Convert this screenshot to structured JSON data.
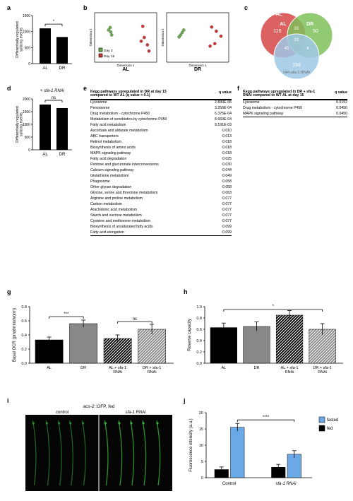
{
  "panel_a": {
    "label": "a",
    "type": "bar",
    "categories": [
      "AL",
      "DR"
    ],
    "values": [
      1100,
      830
    ],
    "errors": [
      0,
      0
    ],
    "ylim": [
      0,
      1500
    ],
    "ytick_step": 500,
    "ylabel": "Differentially regulated\nsplicing events",
    "bar_colors": [
      "#000000",
      "#000000"
    ],
    "sig_label": "*",
    "title_fontsize": 7,
    "axis_fontsize": 6
  },
  "panel_b": {
    "label": "b",
    "type": "scatter_pair",
    "left_label": "AL",
    "right_label": "DR",
    "legend": [
      {
        "label": "Day 3",
        "color": "#6aa84f"
      },
      {
        "label": "Day 15",
        "color": "#cc3333"
      }
    ],
    "left": {
      "day3": [
        [
          -0.5,
          0.4
        ],
        [
          -0.55,
          0.3
        ],
        [
          -0.48,
          0.22
        ],
        [
          -0.45,
          0.1
        ]
      ],
      "day15": [
        [
          0.55,
          0.45
        ],
        [
          0.6,
          0.0
        ],
        [
          0.7,
          -0.3
        ],
        [
          0.75,
          -0.55
        ],
        [
          0.5,
          -0.15
        ]
      ]
    },
    "right": {
      "day3": [
        [
          -0.45,
          0.3
        ],
        [
          -0.5,
          0.2
        ],
        [
          -0.55,
          0.1
        ],
        [
          -0.6,
          0.02
        ]
      ],
      "day15": [
        [
          0.45,
          0.42
        ],
        [
          0.6,
          0.25
        ],
        [
          0.75,
          0.05
        ],
        [
          0.55,
          -0.25
        ],
        [
          0.4,
          -0.35
        ]
      ]
    },
    "xlabel": "Dimension 1",
    "ylabel": "Dimension 2",
    "xlim": [
      -1,
      1
    ],
    "ylim": [
      -1,
      1
    ],
    "point_r": 2.2
  },
  "panel_c": {
    "label": "c",
    "type": "venn3",
    "circle_fill": {
      "AL": "#d64545",
      "DR": "#7fbf5a",
      "DRsfa": "#9fc8e6"
    },
    "labels": {
      "AL": "AL",
      "DR": "DR",
      "DRsfa": "DR+sfa-1 RNAi"
    },
    "counts": {
      "AL_only": 116,
      "DR_only": 50,
      "DRsfa_only": 158,
      "AL_DR": 33,
      "AL_DRsfa": 45,
      "DR_DRsfa": 4,
      "ALL": 33
    }
  },
  "panel_d": {
    "label": "d",
    "type": "bar",
    "title": "+ sfa-1 RNAi",
    "categories": [
      "AL",
      "DR"
    ],
    "values": [
      1780,
      1640
    ],
    "ylim": [
      0,
      2000
    ],
    "ytick_step": 500,
    "ylabel": "Differentially regulated\nsplicing events",
    "bar_colors": [
      "#000000",
      "#000000"
    ],
    "sig_label": "ns"
  },
  "panel_e": {
    "label": "e",
    "type": "table",
    "header": "Kegg pathways upregulated in DR at day 15\ncompared to WT AL (q value < 0.1)",
    "qcol": "q value",
    "rows": [
      [
        "Lysosome",
        "2.830E-06"
      ],
      [
        "Peroxisome",
        "3.256E-04"
      ],
      [
        "Drug metabolism - cytochrome P450",
        "6.375E-04"
      ],
      [
        "Metabolism of xenobiotics by cytochrome P450",
        "8.669E-04"
      ],
      [
        "Fatty acid metabolism",
        "9.191E-03"
      ],
      [
        "Ascorbate and aldarate metabolism",
        "0.010"
      ],
      [
        "ABC transporters",
        "0.013"
      ],
      [
        "Retinol metabolism",
        "0.018"
      ],
      [
        "Biosynthesis of amino acids",
        "0.018"
      ],
      [
        "MAPK signaling pathway",
        "0.018"
      ],
      [
        "Fatty acid degradation",
        "0.025"
      ],
      [
        "Pentose and glucuronate interconversions",
        "0.030"
      ],
      [
        "Calcium signaling pathway",
        "0.044"
      ],
      [
        "Glutathione metabolism",
        "0.049"
      ],
      [
        "Phagosome",
        "0.058"
      ],
      [
        "Other glycan degradation",
        "0.058"
      ],
      [
        "Glycine, serine and threonine metabolism",
        "0.063"
      ],
      [
        "Arginine and proline metabolism",
        "0.077"
      ],
      [
        "Carbon metabolism",
        "0.077"
      ],
      [
        "Arachidonic acid metabolism",
        "0.077"
      ],
      [
        "Starch and sucrose metabolism",
        "0.077"
      ],
      [
        "Cysteine and methionine metabolism",
        "0.077"
      ],
      [
        "Biosynthesis of unsaturated fatty acids",
        "0.099"
      ],
      [
        "Fatty acid elongation",
        "0.099"
      ]
    ]
  },
  "panel_f": {
    "label": "f",
    "type": "table",
    "header": "Kegg pathways upregulated in DR + sfa-1\nRNAi compared to WT AL at day 15",
    "qcol": "q value",
    "rows": [
      [
        "Lysosome",
        "0.0152"
      ],
      [
        "Drug metabolism - cytochrome P450",
        "0.0450"
      ],
      [
        "MAPK signaling pathway",
        "0.0450"
      ]
    ]
  },
  "panel_g": {
    "label": "g",
    "type": "bar",
    "categories": [
      "AL",
      "DR",
      "AL + sfa-1\nRNAi",
      "DR + sfa-1\nRNAi"
    ],
    "values": [
      0.33,
      0.56,
      0.35,
      0.48
    ],
    "errors": [
      0.04,
      0.05,
      0.05,
      0.07
    ],
    "ylim": [
      0.0,
      0.8
    ],
    "ytick_step": 0.2,
    "ylabel": "Basal OCR (pmol/min/worm)",
    "bar_styles": [
      "black",
      "grey",
      "hatch-black",
      "hatch-grey"
    ],
    "sig_pairs": [
      {
        "a": 0,
        "b": 1,
        "label": "***"
      },
      {
        "a": 2,
        "b": 3,
        "label": "ns"
      }
    ]
  },
  "panel_h": {
    "label": "h",
    "type": "bar",
    "categories": [
      "AL",
      "DR",
      "AL + sfa-1\nRNAi",
      "DR + sfa-1\nRNAi"
    ],
    "values": [
      0.63,
      0.65,
      0.85,
      0.6
    ],
    "errors": [
      0.08,
      0.08,
      0.08,
      0.1
    ],
    "ylim": [
      0.0,
      1.0
    ],
    "ytick_step": 0.2,
    "ylabel": "Reserve capacity",
    "bar_styles": [
      "black",
      "grey",
      "hatch-black",
      "hatch-grey"
    ],
    "sig_span": {
      "label": "*"
    }
  },
  "panel_i": {
    "label": "i",
    "title": "acs-2::GFP, fed",
    "left_label": "control",
    "right_label": "sfa-1 RNAi",
    "bg_color": "#050505",
    "gfp_color": "#3dbf3d"
  },
  "panel_j": {
    "label": "j",
    "type": "grouped_bar",
    "categories": [
      "Control",
      "sfa-1 RNAi"
    ],
    "series": [
      {
        "name": "fed",
        "color": "#000000",
        "values": [
          2.5,
          3.2
        ],
        "errors": [
          0.8,
          0.9
        ]
      },
      {
        "name": "fasted",
        "color": "#6aa9e6",
        "values": [
          15.5,
          7.2
        ],
        "errors": [
          1.2,
          1.1
        ]
      }
    ],
    "ylim": [
      0,
      20
    ],
    "ytick_step": 5,
    "ylabel": "Fluorescence intensity (a.u.)",
    "sig_label": "****"
  },
  "colors": {
    "black": "#000000",
    "grey": "#888888",
    "blue": "#6aa9e6",
    "green": "#6aa84f",
    "red": "#cc3333",
    "venn_red": "#d64545",
    "venn_green": "#7fbf5a",
    "venn_blue": "#9fc8e6"
  }
}
